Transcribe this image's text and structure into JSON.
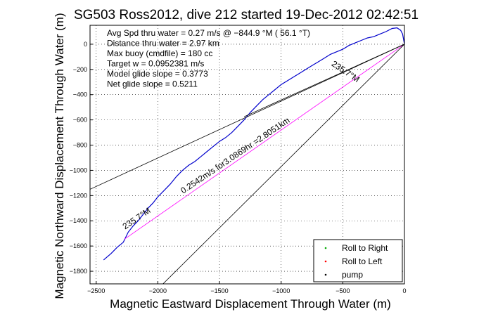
{
  "chart_data": {
    "type": "line",
    "title": "SG503 Ross2012, dive 212 started 19-Dec-2012 02:42:51",
    "xlabel": "Magnetic Eastward Displacement Through Water (m)",
    "ylabel": "Magnetic Northward Displacement Through Water (m)",
    "xlim": [
      -2550,
      0
    ],
    "ylim": [
      -1900,
      150
    ],
    "xticks": [
      -2500,
      -2000,
      -1500,
      -1000,
      -500,
      0
    ],
    "yticks": [
      -1800,
      -1600,
      -1400,
      -1200,
      -1000,
      -800,
      -600,
      -400,
      -200,
      0
    ],
    "grid": true,
    "legend_position": "bottom-right",
    "info_lines": [
      "Avg Spd thru water =  0.27 m/s @ −844.9   °M ( 56.1 °T)",
      "Distance thru water =  2.97 km",
      "Max buoy (cmdfile) = 180 cc",
      "Target w = 0.0952381 m/s",
      "Model glide slope = 0.3773",
      "Net glide slope = 0.5211"
    ],
    "annotations": [
      {
        "text": "0.2542m/s for3.0869hr =2.8051km",
        "x": -1360,
        "y": -900,
        "angle": -34
      },
      {
        "text": "235.7°M",
        "x": -2160,
        "y": -1400,
        "angle": -34
      },
      {
        "text": "235.7°M",
        "x": -490,
        "y": -235,
        "angle": 34
      }
    ],
    "series": [
      {
        "name": "track",
        "color": "#0000cc",
        "x": [
          -2440,
          -2380,
          -2330,
          -2280,
          -2240,
          -2200,
          -2160,
          -2120,
          -2080,
          -2040,
          -2000,
          -1950,
          -1900,
          -1850,
          -1800,
          -1750,
          -1700,
          -1650,
          -1600,
          -1550,
          -1500,
          -1450,
          -1400,
          -1350,
          -1300,
          -1250,
          -1200,
          -1150,
          -1100,
          -1050,
          -1000,
          -950,
          -900,
          -850,
          -800,
          -750,
          -700,
          -650,
          -600,
          -550,
          -500,
          -450,
          -400,
          -350,
          -300,
          -250,
          -200,
          -150,
          -100,
          -60,
          -30,
          -15,
          0
        ],
        "y": [
          -1710,
          -1660,
          -1610,
          -1570,
          -1490,
          -1440,
          -1400,
          -1350,
          -1300,
          -1260,
          -1210,
          -1160,
          -1110,
          -1050,
          -1000,
          -960,
          -930,
          -890,
          -850,
          -810,
          -770,
          -740,
          -700,
          -650,
          -600,
          -540,
          -490,
          -440,
          -400,
          -360,
          -320,
          -290,
          -260,
          -230,
          -200,
          -170,
          -140,
          -110,
          -80,
          -60,
          -40,
          -10,
          10,
          30,
          50,
          60,
          80,
          100,
          125,
          130,
          110,
          80,
          0
        ]
      },
      {
        "name": "net track",
        "color": "#ff00ff",
        "x": [
          -2270,
          0
        ],
        "y": [
          -1545,
          0
        ]
      },
      {
        "name": "glide cone upper",
        "color": "#000000",
        "x": [
          -2550,
          0
        ],
        "y": [
          -1150,
          0
        ]
      },
      {
        "name": "glide cone lower",
        "color": "#000000",
        "x": [
          -2010,
          0
        ],
        "y": [
          -1950,
          0
        ]
      },
      {
        "name": "heading ray",
        "color": "#000000",
        "x": [
          -1300,
          0
        ],
        "y": [
          -575,
          0
        ]
      }
    ],
    "legend": [
      {
        "label": "Roll to Right",
        "color": "#00aa00"
      },
      {
        "label": "Roll to Left",
        "color": "#ff0000"
      },
      {
        "label": "pump",
        "color": "#000000"
      }
    ]
  }
}
